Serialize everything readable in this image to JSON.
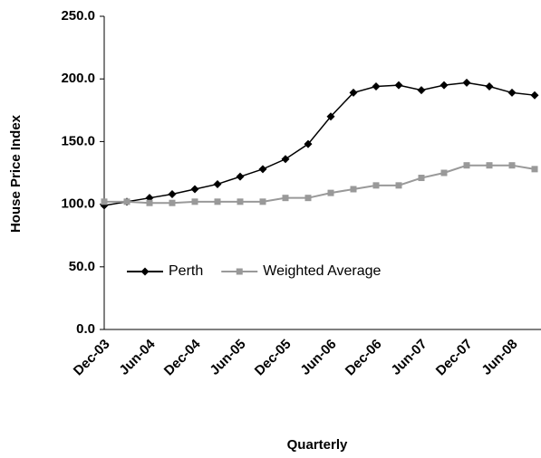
{
  "chart_data": {
    "type": "line",
    "x_label": "Quarterly",
    "y_label": "House Price Index",
    "categories": [
      "Dec-03",
      null,
      "Jun-04",
      null,
      "Dec-04",
      null,
      "Jun-05",
      null,
      "Dec-05",
      null,
      "Jun-06",
      null,
      "Dec-06",
      null,
      "Jun-07",
      null,
      "Dec-07",
      null,
      "Jun-08",
      null
    ],
    "series": [
      {
        "name": "Perth",
        "color": "#000000",
        "marker": "diamond",
        "values": [
          99,
          102,
          105,
          108,
          112,
          116,
          122,
          128,
          136,
          148,
          170,
          189,
          194,
          195,
          191,
          195,
          197,
          194,
          189,
          187
        ]
      },
      {
        "name": "Weighted Average",
        "color": "#999999",
        "marker": "square",
        "values": [
          102,
          102,
          101,
          101,
          102,
          102,
          102,
          102,
          105,
          105,
          109,
          112,
          115,
          115,
          121,
          125,
          131,
          131,
          131,
          128
        ]
      }
    ],
    "ylim": [
      0,
      250
    ],
    "yticks": [
      {
        "value": 0,
        "label": "0.0"
      },
      {
        "value": 50,
        "label": "50.0"
      },
      {
        "value": 100,
        "label": "100.0"
      },
      {
        "value": 150,
        "label": "150.0"
      },
      {
        "value": 200,
        "label": "200.0"
      },
      {
        "value": 250,
        "label": "250.0"
      }
    ],
    "legend": "lower left"
  }
}
